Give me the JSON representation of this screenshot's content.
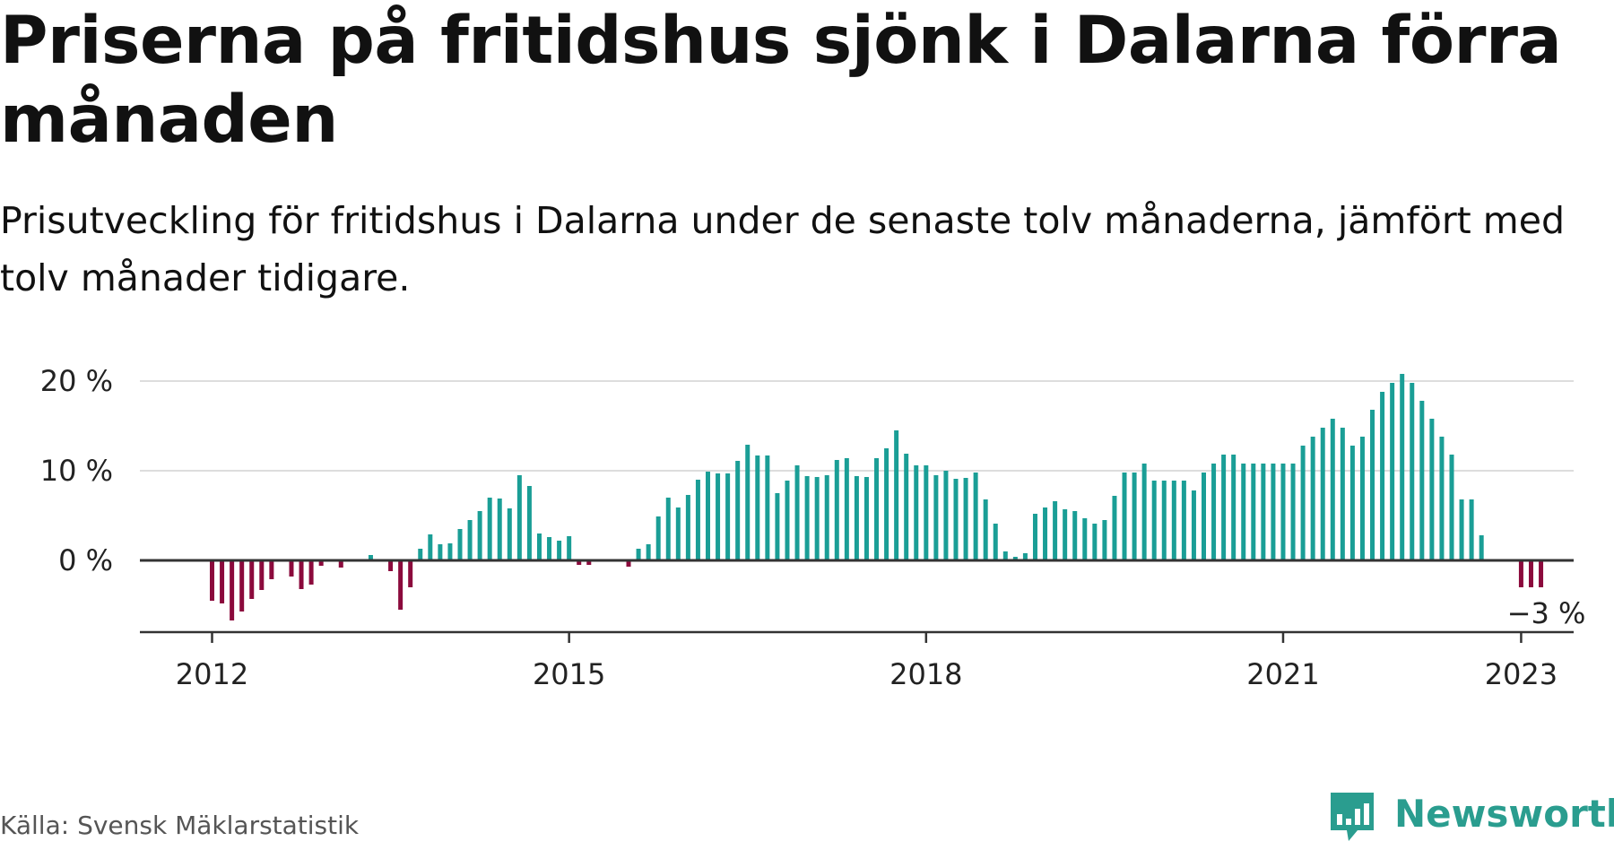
{
  "title": "Priserna på fritidshus sjönk i Dalarna förra månaden",
  "subtitle": "Prisutveckling för fritidshus i Dalarna under de senaste tolv månaderna, jämfört med tolv månader tidigare.",
  "source": "Källa: Svensk Mäklarstatistik",
  "brand": {
    "name": "Newsworthy",
    "color": "#2a9d8f",
    "icon": "newsworthy-logo-icon"
  },
  "colors": {
    "positive": "#1a9e96",
    "negative": "#8b0a3c",
    "grid": "#dddddd",
    "axis": "#333333"
  },
  "chart_data": {
    "type": "bar",
    "x_unit": "month",
    "x_ticks": [
      "2012",
      "2015",
      "2018",
      "2021",
      "2023"
    ],
    "y_ticks": [
      "0 %",
      "10 %",
      "20 %"
    ],
    "ylim": [
      -7,
      20
    ],
    "annotation": "−3 %",
    "series": [
      {
        "start": "2012-01",
        "values": [
          -4.5,
          -4.8,
          -6.7,
          -5.7,
          -4.3,
          -3.3,
          -2.1,
          null,
          -1.8,
          -3.2,
          -2.7,
          -0.6,
          null,
          -0.8,
          null,
          null,
          0.6,
          null,
          -1.2,
          -5.5,
          -3.0,
          1.3,
          2.9,
          1.8,
          1.9,
          3.5,
          4.5,
          5.5,
          7.0,
          6.9,
          5.8,
          9.5,
          8.3,
          3.0,
          2.6,
          2.2,
          2.7,
          -0.5,
          -0.5,
          null,
          null,
          null,
          -0.7,
          1.3,
          1.8,
          4.9,
          7.0,
          5.9,
          7.3,
          9.0,
          9.9,
          9.7,
          9.7,
          11.1,
          12.9,
          11.7,
          11.7,
          7.5,
          8.9,
          10.6,
          9.4,
          9.3,
          9.5,
          11.2,
          11.4,
          9.4,
          9.3,
          11.4,
          12.5,
          14.5,
          11.9,
          10.6,
          10.6,
          9.5,
          10.0,
          9.1,
          9.2,
          9.8,
          6.8,
          4.1,
          1.0,
          0.4,
          0.8,
          5.2,
          5.9,
          6.6,
          5.7,
          5.5,
          4.7,
          4.1,
          4.5,
          7.2,
          9.8,
          9.8,
          10.8,
          8.9,
          8.9,
          8.9,
          8.9,
          7.8,
          9.8,
          10.8,
          11.8,
          11.8,
          10.8,
          10.8,
          10.8,
          10.8,
          10.8,
          10.8,
          12.8,
          13.8,
          14.8,
          15.8,
          14.8,
          12.8,
          13.8,
          16.8,
          18.8,
          19.8,
          20.8,
          19.8,
          17.8,
          15.8,
          13.8,
          11.8,
          6.8,
          6.8,
          2.8,
          null,
          null,
          null,
          -3,
          -3,
          -3
        ]
      }
    ]
  }
}
